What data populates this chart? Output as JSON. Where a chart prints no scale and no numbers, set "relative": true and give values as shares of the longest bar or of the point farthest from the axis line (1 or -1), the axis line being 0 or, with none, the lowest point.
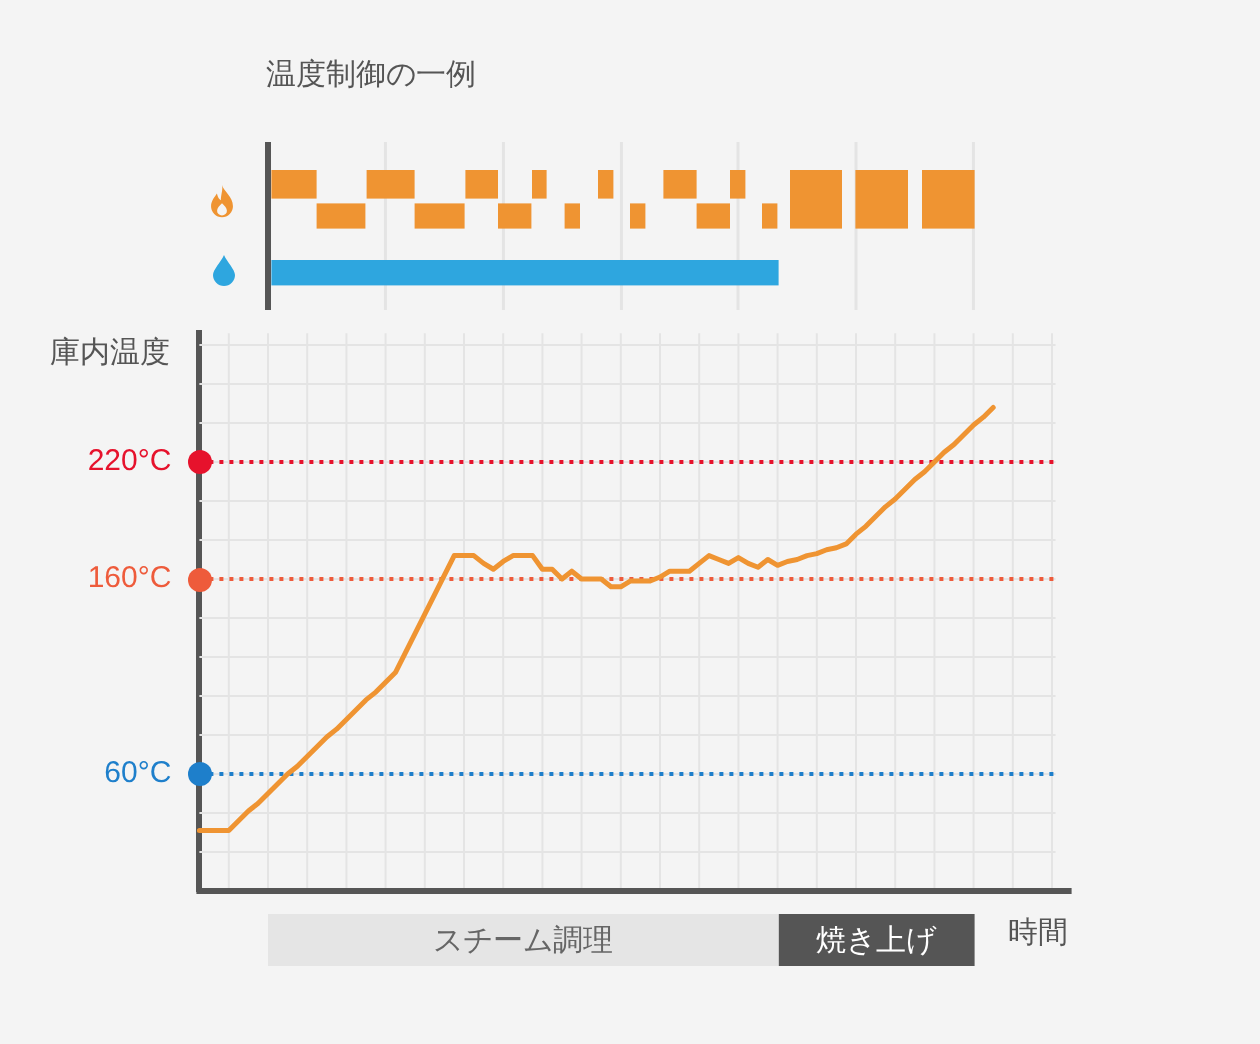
{
  "chart_data": [
    {
      "type": "line",
      "title": "温度制御の一例",
      "xlabel": "時間",
      "ylabel": "庫内温度",
      "color": "#ef9432",
      "categories": [
        null,
        null,
        null,
        null,
        null,
        null,
        null,
        null,
        null,
        null,
        null,
        null,
        null,
        null,
        null,
        null,
        null,
        null,
        null,
        null,
        null,
        null,
        null,
        null,
        null,
        null,
        null,
        null,
        null,
        null,
        null,
        null,
        null,
        null,
        null,
        null,
        null,
        null,
        null,
        null,
        null,
        null,
        null,
        null,
        null,
        null,
        null,
        null,
        null,
        null,
        null,
        null,
        null,
        null,
        null,
        null,
        null,
        null,
        null,
        null,
        null,
        null,
        null,
        null,
        null,
        null,
        null,
        null,
        null,
        null,
        null,
        null,
        null,
        null,
        null,
        null,
        null,
        null,
        null,
        null,
        null,
        null,
        null,
        null,
        null,
        null,
        null,
        null,
        null,
        null
      ],
      "values": [
        31,
        31,
        31,
        31,
        36,
        41,
        45,
        50,
        55,
        60,
        64,
        69,
        74,
        79,
        83,
        88,
        93,
        98,
        102,
        107,
        112,
        122,
        132,
        142,
        152,
        162,
        172,
        172,
        172,
        168,
        165,
        169,
        172,
        172,
        172,
        165,
        165,
        160,
        164,
        160,
        160,
        160,
        156,
        156,
        159,
        159,
        159,
        161,
        164,
        164,
        164,
        168,
        172,
        170,
        168,
        171,
        168,
        166,
        170,
        167,
        169,
        170,
        172,
        173,
        175,
        176,
        178,
        183,
        187,
        192,
        197,
        201,
        206,
        211,
        215,
        220,
        225,
        229,
        234,
        239,
        243,
        248,
        null,
        null,
        null,
        null,
        null,
        null,
        null,
        null
      ],
      "ylim": [
        0,
        286
      ],
      "yticks": [
        {
          "value": 0,
          "label": null
        },
        {
          "value": 20,
          "label": null
        },
        {
          "value": 40,
          "label": null
        },
        {
          "value": 60,
          "label": "60°C"
        },
        {
          "value": 80,
          "label": null
        },
        {
          "value": 100,
          "label": null
        },
        {
          "value": 120,
          "label": null
        },
        {
          "value": 140,
          "label": null
        },
        {
          "value": 160,
          "label": "160°C"
        },
        {
          "value": 180,
          "label": null
        },
        {
          "value": 200,
          "label": null
        },
        {
          "value": 220,
          "label": "220°C"
        },
        {
          "value": 240,
          "label": null
        },
        {
          "value": 260,
          "label": null
        },
        {
          "value": 280,
          "label": null
        }
      ],
      "tick_labels": "y",
      "grid": true,
      "marker": "none",
      "ref_lines": [
        {
          "axis": "y",
          "value": 220,
          "color": "#e6122c",
          "line_style": "dotted"
        },
        {
          "axis": "y",
          "value": 160,
          "color": "#ee5b3b",
          "line_style": "dotted"
        },
        {
          "axis": "y",
          "value": 60,
          "color": "#1e7fcb",
          "line_style": "dotted"
        }
      ]
    },
    {
      "type": "bar",
      "orientation": "horizontal",
      "stacked": true,
      "relative": true,
      "categories": [
        null
      ],
      "series": [
        {
          "name": "スチーム調理",
          "color": "#e5e5e5",
          "values": [
            0.722
          ]
        },
        {
          "name": "焼き上げ",
          "color": "#555555",
          "values": [
            0.278
          ]
        }
      ]
    }
  ]
}
